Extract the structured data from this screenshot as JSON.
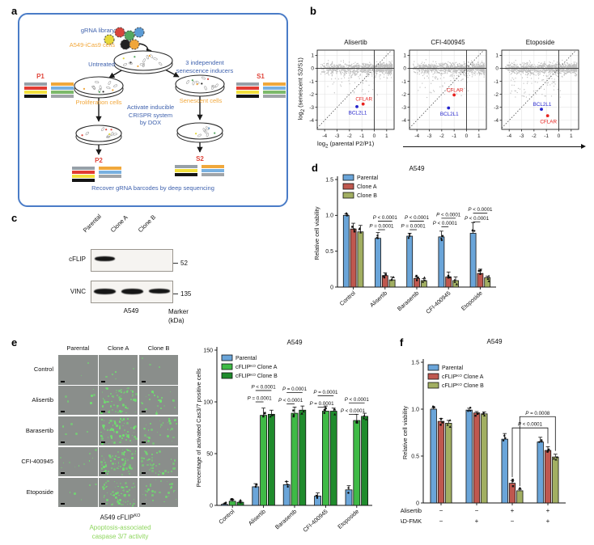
{
  "letters": {
    "a": "a",
    "b": "b",
    "c": "c",
    "d": "d",
    "e": "e",
    "f": "f"
  },
  "panel_a": {
    "texts": {
      "grna_library": "gRNA library",
      "cells": "A549-iCas9 cells",
      "untreated": "Untreated",
      "inducers": "3 independent\nsenescence inducers",
      "proliferation": "Proliferation cells",
      "senescent": "Senescent cells",
      "activate": "Activate inducible\nCRISPR system\nby DOX",
      "recover": "Recover gRNA barcodes by deep sequencing",
      "p1": "P1",
      "s1": "S1",
      "p2": "P2",
      "s2": "S2"
    },
    "grna_colors": [
      "#d9453c",
      "#55a860",
      "#5b9bd5",
      "#e6d93b",
      "#222222",
      "#f0a63a"
    ],
    "barcode_colors": {
      "gray": "#97a0a8",
      "red": "#e23c32",
      "yellow": "#f2e03c",
      "black": "#141414",
      "orange": "#f0a83c",
      "blue": "#78b0e0",
      "green": "#7cb96b",
      "gray2": "#a0a4a8"
    },
    "barcodes": {
      "P1": {
        "left": [
          "gray",
          "red",
          "yellow",
          "black"
        ],
        "right": [
          "orange",
          "blue",
          "green",
          "gray2"
        ]
      },
      "S1": {
        "left": [
          "gray",
          "red",
          "yellow",
          "black"
        ],
        "right": [
          "orange",
          "blue",
          "green",
          "gray2"
        ]
      },
      "P2": {
        "left": [
          "gray",
          "red",
          "yellow",
          "black"
        ],
        "right": [
          "orange",
          "blue",
          "gray2"
        ]
      },
      "S2": {
        "left": [
          "gray",
          "yellow",
          "black"
        ],
        "right": [
          "orange",
          "blue",
          "gray2"
        ]
      }
    }
  },
  "panel_b": {
    "ylabel": {
      "pre": "log",
      "sub": "2",
      "post": " (senescent S2/S1)"
    },
    "xlabel": {
      "pre": "log",
      "sub": "2",
      "post": " (parental P2/P1)"
    }
  },
  "panel_c": {
    "lanes": [
      "Parental",
      "Clone A",
      "Clone B"
    ],
    "blots": [
      {
        "target": "cFLIP",
        "marker": "52",
        "bands": [
          1,
          0,
          0
        ]
      },
      {
        "target": "VINC",
        "marker": "135",
        "bands": [
          1,
          1,
          1
        ]
      }
    ],
    "cell_line": "A549",
    "marker_title": "Marker\n(kDa)"
  },
  "panel_e_images": {
    "col_headers": [
      "Parental",
      "Clone A",
      "Clone B"
    ],
    "row_labels": [
      "Control",
      "Alisertib",
      "Barasertib",
      "CFI-400945",
      "Etoposide"
    ],
    "densities": [
      [
        2,
        6,
        3
      ],
      [
        6,
        70,
        25
      ],
      [
        5,
        80,
        35
      ],
      [
        12,
        75,
        40
      ],
      [
        6,
        65,
        30
      ]
    ],
    "caption": "A549 cFLIP^KO^",
    "legend_caption": "Apoptosis-associated\ncaspase 3/7 activity",
    "legend_color": "#8ed65e",
    "speckle_color": "110,226,110",
    "bg": "#8a8e8b"
  },
  "chart_data": [
    {
      "id": "b0",
      "type": "scatter",
      "title": "Alisertib",
      "xlim": [
        -4.6,
        1.6
      ],
      "ylim": [
        -4.7,
        1.4
      ],
      "xticks": [
        -4,
        -3,
        -2,
        -1,
        0,
        1
      ],
      "yticks": [
        1,
        0,
        -1,
        -2,
        -3,
        -4
      ],
      "highlights": [
        {
          "name": "CFLAR",
          "x": -0.9,
          "y": -2.75,
          "color": "#e8211d",
          "labelPos": "above"
        },
        {
          "name": "BCL2L1",
          "x": -1.4,
          "y": -2.95,
          "color": "#2323cc",
          "labelPos": "below"
        }
      ],
      "cloud": {
        "n": 1050,
        "seed": 11,
        "below": 55
      }
    },
    {
      "id": "b1",
      "type": "scatter",
      "title": "CFI-400945",
      "xlim": [
        -4.6,
        1.6
      ],
      "ylim": [
        -4.7,
        1.4
      ],
      "xticks": [
        -4,
        -3,
        -2,
        -1,
        0,
        1
      ],
      "yticks": [
        1,
        0,
        -1,
        -2,
        -3,
        -4
      ],
      "highlights": [
        {
          "name": "CFLAR",
          "x": -1.0,
          "y": -2.05,
          "color": "#e8211d",
          "labelPos": "above"
        },
        {
          "name": "BCL2L1",
          "x": -1.45,
          "y": -3.05,
          "color": "#2323cc",
          "labelPos": "below"
        }
      ],
      "cloud": {
        "n": 1050,
        "seed": 23,
        "below": 50
      }
    },
    {
      "id": "b2",
      "type": "scatter",
      "title": "Etoposide",
      "xlim": [
        -4.6,
        1.6
      ],
      "ylim": [
        -4.7,
        1.4
      ],
      "xticks": [
        -4,
        -3,
        -2,
        -1,
        0,
        1
      ],
      "yticks": [
        1,
        0,
        -1,
        -2,
        -3,
        -4
      ],
      "highlights": [
        {
          "name": "BCL2L1",
          "x": -1.4,
          "y": -3.15,
          "color": "#2323cc",
          "labelPos": "above"
        },
        {
          "name": "CFLAR",
          "x": -0.9,
          "y": -3.65,
          "color": "#e8211d",
          "labelPos": "below"
        }
      ],
      "cloud": {
        "n": 1050,
        "seed": 37,
        "below": 95
      }
    },
    {
      "id": "d",
      "type": "bar",
      "title": "A549",
      "ylabel": "Relative cell viability",
      "ylim": [
        0,
        1.5
      ],
      "yticks": [
        0,
        0.5,
        1,
        1.5
      ],
      "ytick_labels": [
        "0",
        "0.5",
        "1.0",
        "1.5"
      ],
      "categories": [
        "Control",
        "Alisertib",
        "Barasertib",
        "CFI-400945",
        "Etoposide"
      ],
      "series": [
        {
          "name": "Parental",
          "color": "#6aa5d9",
          "values": [
            1.0,
            0.68,
            0.71,
            0.7,
            0.75
          ],
          "errs": [
            0.02,
            0.08,
            0.04,
            0.08,
            0.15
          ]
        },
        {
          "name": "Clone A",
          "color": "#bf584f",
          "values": [
            0.81,
            0.16,
            0.12,
            0.14,
            0.19
          ],
          "errs": [
            0.08,
            0.04,
            0.02,
            0.07,
            0.06
          ]
        },
        {
          "name": "Clone B",
          "color": "#a2af62",
          "values": [
            0.77,
            0.1,
            0.09,
            0.09,
            0.13
          ],
          "errs": [
            0.09,
            0.04,
            0.03,
            0.05,
            0.02
          ]
        }
      ],
      "annotations": [
        {
          "g0": 1,
          "s0": 0,
          "g1": 1,
          "s1": 1,
          "y": 0.8,
          "label": "P = 0.0001"
        },
        {
          "g0": 1,
          "s0": 0,
          "g1": 1,
          "s1": 2,
          "y": 0.92,
          "label": "P < 0.0001"
        },
        {
          "g0": 2,
          "s0": 0,
          "g1": 2,
          "s1": 1,
          "y": 0.8,
          "label": "P = 0.0001"
        },
        {
          "g0": 2,
          "s0": 0,
          "g1": 2,
          "s1": 2,
          "y": 0.92,
          "label": "P < 0.0001"
        },
        {
          "g0": 3,
          "s0": 0,
          "g1": 3,
          "s1": 1,
          "y": 0.84,
          "label": "P < 0.0001"
        },
        {
          "g0": 3,
          "s0": 0,
          "g1": 3,
          "s1": 2,
          "y": 0.96,
          "label": "P < 0.0001"
        },
        {
          "g0": 4,
          "s0": 0,
          "g1": 4,
          "s1": 1,
          "y": 0.91,
          "label": "P < 0.0001"
        },
        {
          "g0": 4,
          "s0": 0,
          "g1": 4,
          "s1": 2,
          "y": 1.03,
          "label": "P < 0.0001"
        }
      ]
    },
    {
      "id": "e",
      "type": "bar",
      "title": "A549",
      "ylabel": "Percentage of activated Cas3/7 positive cells",
      "ylim": [
        0,
        150
      ],
      "yticks": [
        0,
        50,
        100,
        150
      ],
      "ytick_labels": [
        "0",
        "50",
        "100",
        "150"
      ],
      "categories": [
        "Control",
        "Alisertib",
        "Barasertib",
        "CFI-400945",
        "Etoposide"
      ],
      "series": [
        {
          "name": "Parental",
          "color": "#6aa5d9",
          "values": [
            1,
            18,
            20,
            9,
            15
          ],
          "errs": [
            0.6,
            3,
            3,
            3,
            4
          ]
        },
        {
          "name": "cFLIP^KO^ Clone A",
          "color": "#3fba46",
          "values": [
            4,
            87,
            89,
            91,
            82
          ],
          "errs": [
            1.5,
            7,
            6,
            5,
            6
          ]
        },
        {
          "name": "cFLIP^KO^ Clone B",
          "color": "#1f8b2c",
          "values": [
            3,
            88,
            92,
            91,
            86
          ],
          "errs": [
            1,
            4,
            4,
            3,
            3
          ]
        }
      ],
      "annotations": [
        {
          "g0": 1,
          "s0": 0,
          "g1": 1,
          "s1": 1,
          "y": 100,
          "label": "P = 0.0001"
        },
        {
          "g0": 1,
          "s0": 0,
          "g1": 1,
          "s1": 2,
          "y": 111,
          "label": "P < 0.0001"
        },
        {
          "g0": 2,
          "s0": 0,
          "g1": 2,
          "s1": 1,
          "y": 98,
          "label": "P < 0.0001"
        },
        {
          "g0": 2,
          "s0": 0,
          "g1": 2,
          "s1": 2,
          "y": 109,
          "label": "P = 0.0001"
        },
        {
          "g0": 3,
          "s0": 0,
          "g1": 3,
          "s1": 1,
          "y": 95,
          "label": "P = 0.0001"
        },
        {
          "g0": 3,
          "s0": 0,
          "g1": 3,
          "s1": 2,
          "y": 106,
          "label": "P = 0.0001"
        },
        {
          "g0": 4,
          "s0": 0,
          "g1": 4,
          "s1": 1,
          "y": 88,
          "label": "P < 0.0001"
        },
        {
          "g0": 4,
          "s0": 0,
          "g1": 4,
          "s1": 2,
          "y": 99,
          "label": "P < 0.0001"
        }
      ]
    },
    {
      "id": "f",
      "type": "bar",
      "title": "A549",
      "ylabel": "Relative cell viability",
      "ylim": [
        0,
        1.5
      ],
      "yticks": [
        0,
        0.5,
        1,
        1.5
      ],
      "ytick_labels": [
        "0",
        "0.5",
        "1.0",
        "1.5"
      ],
      "categories": [
        "",
        "",
        "",
        ""
      ],
      "sign_rows": [
        {
          "label": "Alisertib",
          "signs": [
            "−",
            "−",
            "+",
            "+"
          ]
        },
        {
          "label": "Z-VAD-FMK",
          "signs": [
            "−",
            "+",
            "−",
            "+"
          ]
        }
      ],
      "series": [
        {
          "name": "Parental",
          "color": "#6aa5d9",
          "values": [
            1.0,
            0.99,
            0.68,
            0.65
          ],
          "errs": [
            0.015,
            0.02,
            0.06,
            0.05
          ]
        },
        {
          "name": "cFLIP^KO^ Clone A",
          "color": "#bf584f",
          "values": [
            0.87,
            0.96,
            0.21,
            0.56
          ],
          "errs": [
            0.03,
            0.015,
            0.03,
            0.04
          ]
        },
        {
          "name": "cFLIP^KO^ Clone B",
          "color": "#a2af62",
          "values": [
            0.85,
            0.95,
            0.13,
            0.49
          ],
          "errs": [
            0.03,
            0.02,
            0.015,
            0.03
          ]
        }
      ],
      "annotations": [
        {
          "g0": 2,
          "s0": 1,
          "g1": 3,
          "s1": 1,
          "y": 0.8,
          "label": "P < 0.0001",
          "legs": true
        },
        {
          "g0": 2,
          "s0": 2,
          "g1": 3,
          "s1": 2,
          "y": 0.92,
          "label": "P = 0.0008",
          "legs": true
        }
      ]
    }
  ]
}
